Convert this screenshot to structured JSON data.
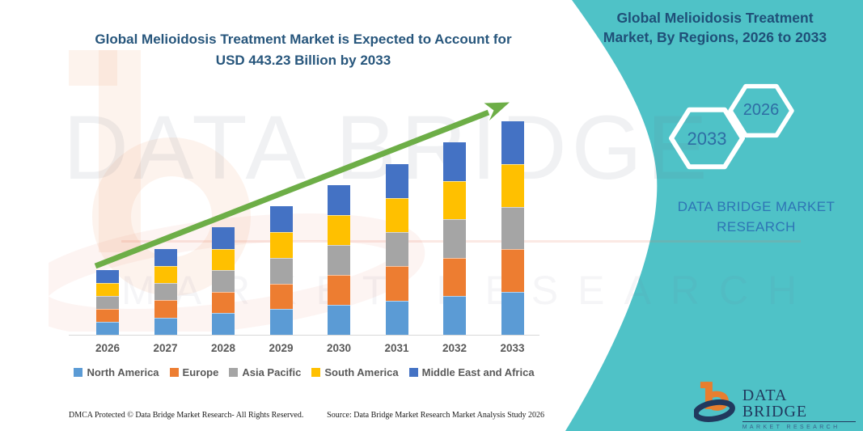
{
  "page": {
    "main_title_line1": "Global Melioidosis Treatment Market is Expected to Account for",
    "main_title_line2": "USD 443.23 Billion by 2033",
    "side_panel": {
      "title_line1": "Global Melioidosis Treatment",
      "title_line2": "Market, By Regions, 2026 to 2033",
      "hexagon_end_year": "2033",
      "hexagon_start_year": "2026",
      "brand_line1": "DATA BRIDGE MARKET",
      "brand_line2": "RESEARCH"
    },
    "watermark": {
      "big_text": "DATA BRIDGE",
      "small_text": "MARKET RESEARCH"
    },
    "logo": {
      "name": "DATA BRIDGE",
      "tagline": "MARKET RESEARCH"
    },
    "footer": {
      "left": "DMCA Protected © Data Bridge Market Research-  All Rights Reserved.",
      "source": "Source: Data Bridge Market Research  Market Analysis Study 2026"
    }
  },
  "colors": {
    "teal": "#4FC2C7",
    "title_blue": "#27567C",
    "brand_blue": "#2E74B5",
    "arrow_green": "#6DAE47",
    "label_gray": "#595959",
    "axis_gray": "#D9D9D9",
    "logo_navy": "#21395E",
    "logo_orange": "#E87E2E"
  },
  "chart_data": {
    "type": "bar",
    "stacked": true,
    "title": "Global Melioidosis Treatment Market is Expected to Account for USD 443.23 Billion by 2033",
    "unit": "USD Billion",
    "categories": [
      "2026",
      "2027",
      "2028",
      "2029",
      "2030",
      "2031",
      "2032",
      "2033"
    ],
    "totals": [
      134.2,
      178.4,
      222.5,
      266.7,
      310.8,
      355.0,
      399.1,
      443.23
    ],
    "series": [
      {
        "name": "North America",
        "color": "#5B9BD5",
        "values": [
          26.8,
          35.7,
          44.5,
          53.3,
          62.2,
          71.0,
          79.8,
          88.6
        ]
      },
      {
        "name": "Europe",
        "color": "#ED7D31",
        "values": [
          26.8,
          35.7,
          44.5,
          53.3,
          62.2,
          71.0,
          79.8,
          88.6
        ]
      },
      {
        "name": "Asia Pacific",
        "color": "#A5A5A5",
        "values": [
          26.8,
          35.7,
          44.5,
          53.3,
          62.2,
          71.0,
          79.8,
          88.6
        ]
      },
      {
        "name": "South America",
        "color": "#FFC000",
        "values": [
          26.8,
          35.7,
          44.5,
          53.3,
          62.2,
          71.0,
          79.8,
          88.6
        ]
      },
      {
        "name": "Middle East and Africa",
        "color": "#4472C4",
        "values": [
          27.0,
          35.6,
          44.5,
          53.5,
          62.0,
          71.0,
          79.9,
          88.83
        ]
      }
    ],
    "annotation": "USD 443.23 Billion by 2033",
    "trend_arrow": "up",
    "legend_position": "bottom",
    "xlabel": "",
    "ylabel": "",
    "ylim": [
      0,
      465
    ],
    "grid": false
  }
}
